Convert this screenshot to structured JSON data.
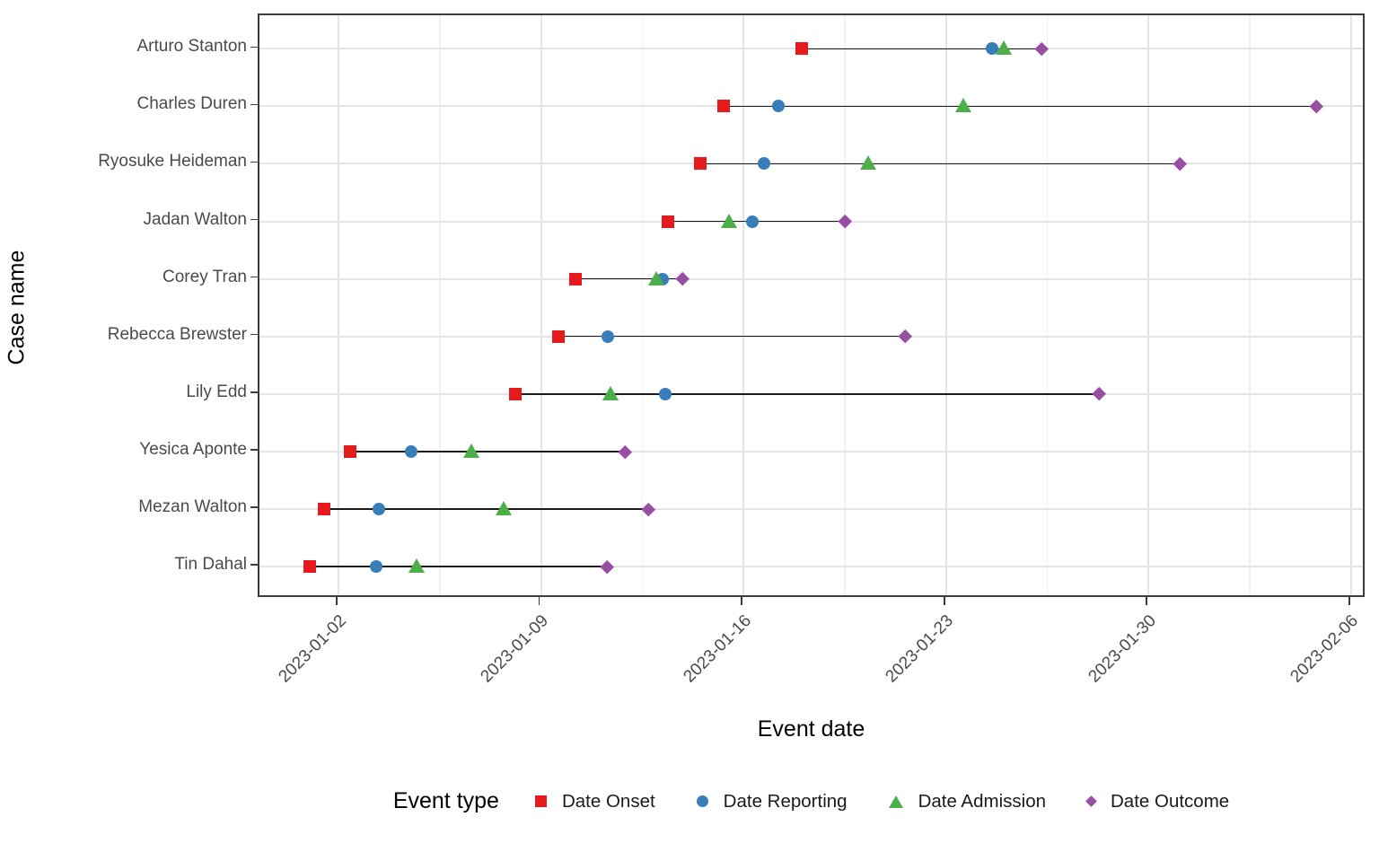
{
  "chart_data": {
    "type": "scatter",
    "subtype": "case-event-timeline",
    "title": "",
    "xlabel": "Event date",
    "ylabel": "Case name",
    "grid": "major-x, minor-x, major-y on",
    "legend_position": "bottom",
    "legend_title": "Event type",
    "x_epoch_date": "2023-01-02",
    "x_axis_tick_labels": [
      "2023-01-02",
      "2023-01-09",
      "2023-01-16",
      "2023-01-23",
      "2023-01-30",
      "2023-02-06"
    ],
    "x_axis_tick_day_offsets": [
      0,
      7,
      14,
      21,
      28,
      35
    ],
    "x_range_day_offsets": [
      -2.73,
      35.54
    ],
    "event_types": [
      {
        "key": "onset",
        "label": "Date Onset",
        "marker": "square",
        "color": "#E41A1C"
      },
      {
        "key": "reporting",
        "label": "Date Reporting",
        "marker": "circle",
        "color": "#377EB8"
      },
      {
        "key": "admission",
        "label": "Date Admission",
        "marker": "triangle",
        "color": "#4DAF4A"
      },
      {
        "key": "outcome",
        "label": "Date Outcome",
        "marker": "diamond",
        "color": "#984EA3"
      }
    ],
    "cases": [
      {
        "name": "Arturo Stanton",
        "events": {
          "onset": {
            "date": "2023-01-18",
            "day": 16.0
          },
          "reporting": {
            "date": "2023-01-25",
            "day": 22.6
          },
          "admission": {
            "date": "2023-01-25",
            "day": 23.0
          },
          "outcome": {
            "date": "2023-01-26",
            "day": 24.3
          }
        }
      },
      {
        "name": "Charles Duren",
        "events": {
          "onset": {
            "date": "2023-01-15",
            "day": 13.3
          },
          "reporting": {
            "date": "2023-01-17",
            "day": 15.2
          },
          "admission": {
            "date": "2023-01-24",
            "day": 21.6
          },
          "outcome": {
            "date": "2023-02-05",
            "day": 33.8
          }
        }
      },
      {
        "name": "Ryosuke Heideman",
        "events": {
          "onset": {
            "date": "2023-01-14",
            "day": 12.5
          },
          "reporting": {
            "date": "2023-01-17",
            "day": 14.7
          },
          "admission": {
            "date": "2023-01-20",
            "day": 18.3
          },
          "outcome": {
            "date": "2023-01-31",
            "day": 29.1
          }
        }
      },
      {
        "name": "Jadan Walton",
        "events": {
          "onset": {
            "date": "2023-01-13",
            "day": 11.4
          },
          "reporting": {
            "date": "2023-01-16",
            "day": 14.3
          },
          "admission": {
            "date": "2023-01-15",
            "day": 13.5
          },
          "outcome": {
            "date": "2023-01-20",
            "day": 17.5
          }
        }
      },
      {
        "name": "Corey Tran",
        "events": {
          "onset": {
            "date": "2023-01-10",
            "day": 8.2
          },
          "reporting": {
            "date": "2023-01-13",
            "day": 11.2
          },
          "admission": {
            "date": "2023-01-13",
            "day": 11.0
          },
          "outcome": {
            "date": "2023-01-14",
            "day": 11.9
          }
        }
      },
      {
        "name": "Rebecca Brewster",
        "events": {
          "onset": {
            "date": "2023-01-10",
            "day": 7.6
          },
          "reporting": {
            "date": "2023-01-11",
            "day": 9.3
          },
          "admission": null,
          "outcome": {
            "date": "2023-01-22",
            "day": 19.6
          }
        }
      },
      {
        "name": "Lily Edd",
        "events": {
          "onset": {
            "date": "2023-01-08",
            "day": 6.1
          },
          "reporting": {
            "date": "2023-01-13",
            "day": 11.3
          },
          "admission": {
            "date": "2023-01-11",
            "day": 9.4
          },
          "outcome": {
            "date": "2023-01-28",
            "day": 26.3
          }
        }
      },
      {
        "name": "Yesica Aponte",
        "events": {
          "onset": {
            "date": "2023-01-02",
            "day": 0.4
          },
          "reporting": {
            "date": "2023-01-04",
            "day": 2.5
          },
          "admission": {
            "date": "2023-01-07",
            "day": 4.6
          },
          "outcome": {
            "date": "2023-01-12",
            "day": 9.9
          }
        }
      },
      {
        "name": "Mezan Walton",
        "events": {
          "onset": {
            "date": "2023-01-01",
            "day": -0.5
          },
          "reporting": {
            "date": "2023-01-03",
            "day": 1.4
          },
          "admission": {
            "date": "2023-01-08",
            "day": 5.7
          },
          "outcome": {
            "date": "2023-01-13",
            "day": 10.7
          }
        }
      },
      {
        "name": "Tin Dahal",
        "events": {
          "onset": {
            "date": "2023-01-01",
            "day": -1.0
          },
          "reporting": {
            "date": "2023-01-03",
            "day": 1.3
          },
          "admission": {
            "date": "2023-01-05",
            "day": 2.7
          },
          "outcome": {
            "date": "2023-01-11",
            "day": 9.3
          }
        }
      }
    ]
  },
  "colors": {
    "onset": "#E41A1C",
    "reporting": "#377EB8",
    "admission": "#4DAF4A",
    "outcome": "#984EA3",
    "grid_major": "#e4e4e4",
    "grid_minor": "#f0f0f0",
    "panel_border": "#3c3c3c",
    "tick_text": "#4a4a4a",
    "segment": "#1a1a1a"
  }
}
